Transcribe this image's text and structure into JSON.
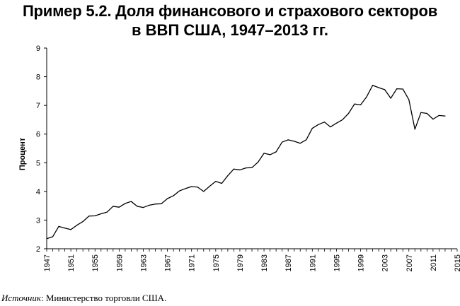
{
  "title": {
    "line1": "Пример 5.2. Доля финансового и страхового секторов",
    "line2": "в ВВП США, 1947–2013 гг."
  },
  "source": {
    "label": "Источник",
    "text": ": Министерство торговли США."
  },
  "chart_data": {
    "type": "line",
    "title": "Пример 5.2. Доля финансового и страхового секторов в ВВП США, 1947–2013 гг.",
    "xlabel": "",
    "ylabel": "Процент",
    "xlim": [
      1947,
      2015
    ],
    "ylim": [
      2,
      9
    ],
    "xticks": [
      1947,
      1951,
      1955,
      1959,
      1963,
      1967,
      1971,
      1975,
      1979,
      1983,
      1987,
      1991,
      1995,
      1999,
      2003,
      2007,
      2011,
      2015
    ],
    "yticks": [
      2,
      3,
      4,
      5,
      6,
      7,
      8,
      9
    ],
    "grid": false,
    "line_color": "#000000",
    "series": [
      {
        "x": [
          1947,
          1948,
          1949,
          1950,
          1951,
          1952,
          1953,
          1954,
          1955,
          1956,
          1957,
          1958,
          1959,
          1960,
          1961,
          1962,
          1963,
          1964,
          1965,
          1966,
          1967,
          1968,
          1969,
          1970,
          1971,
          1972,
          1973,
          1974,
          1975,
          1976,
          1977,
          1978,
          1979,
          1980,
          1981,
          1982,
          1983,
          1984,
          1985,
          1986,
          1987,
          1988,
          1989,
          1990,
          1991,
          1992,
          1993,
          1994,
          1995,
          1996,
          1997,
          1998,
          1999,
          2000,
          2001,
          2002,
          2003,
          2004,
          2005,
          2006,
          2007,
          2008,
          2009,
          2010,
          2011,
          2012,
          2013
        ],
        "values": [
          2.35,
          2.42,
          2.78,
          2.72,
          2.67,
          2.82,
          2.95,
          3.14,
          3.15,
          3.22,
          3.28,
          3.48,
          3.45,
          3.58,
          3.65,
          3.48,
          3.44,
          3.52,
          3.56,
          3.57,
          3.75,
          3.85,
          4.02,
          4.1,
          4.17,
          4.15,
          4.0,
          4.18,
          4.35,
          4.28,
          4.55,
          4.78,
          4.75,
          4.82,
          4.83,
          5.02,
          5.33,
          5.28,
          5.38,
          5.72,
          5.8,
          5.75,
          5.68,
          5.8,
          6.2,
          6.33,
          6.42,
          6.25,
          6.38,
          6.5,
          6.72,
          7.05,
          7.02,
          7.3,
          7.7,
          7.62,
          7.55,
          7.25,
          7.58,
          7.57,
          7.2,
          6.17,
          6.75,
          6.72,
          6.52,
          6.65,
          6.63
        ]
      }
    ]
  }
}
